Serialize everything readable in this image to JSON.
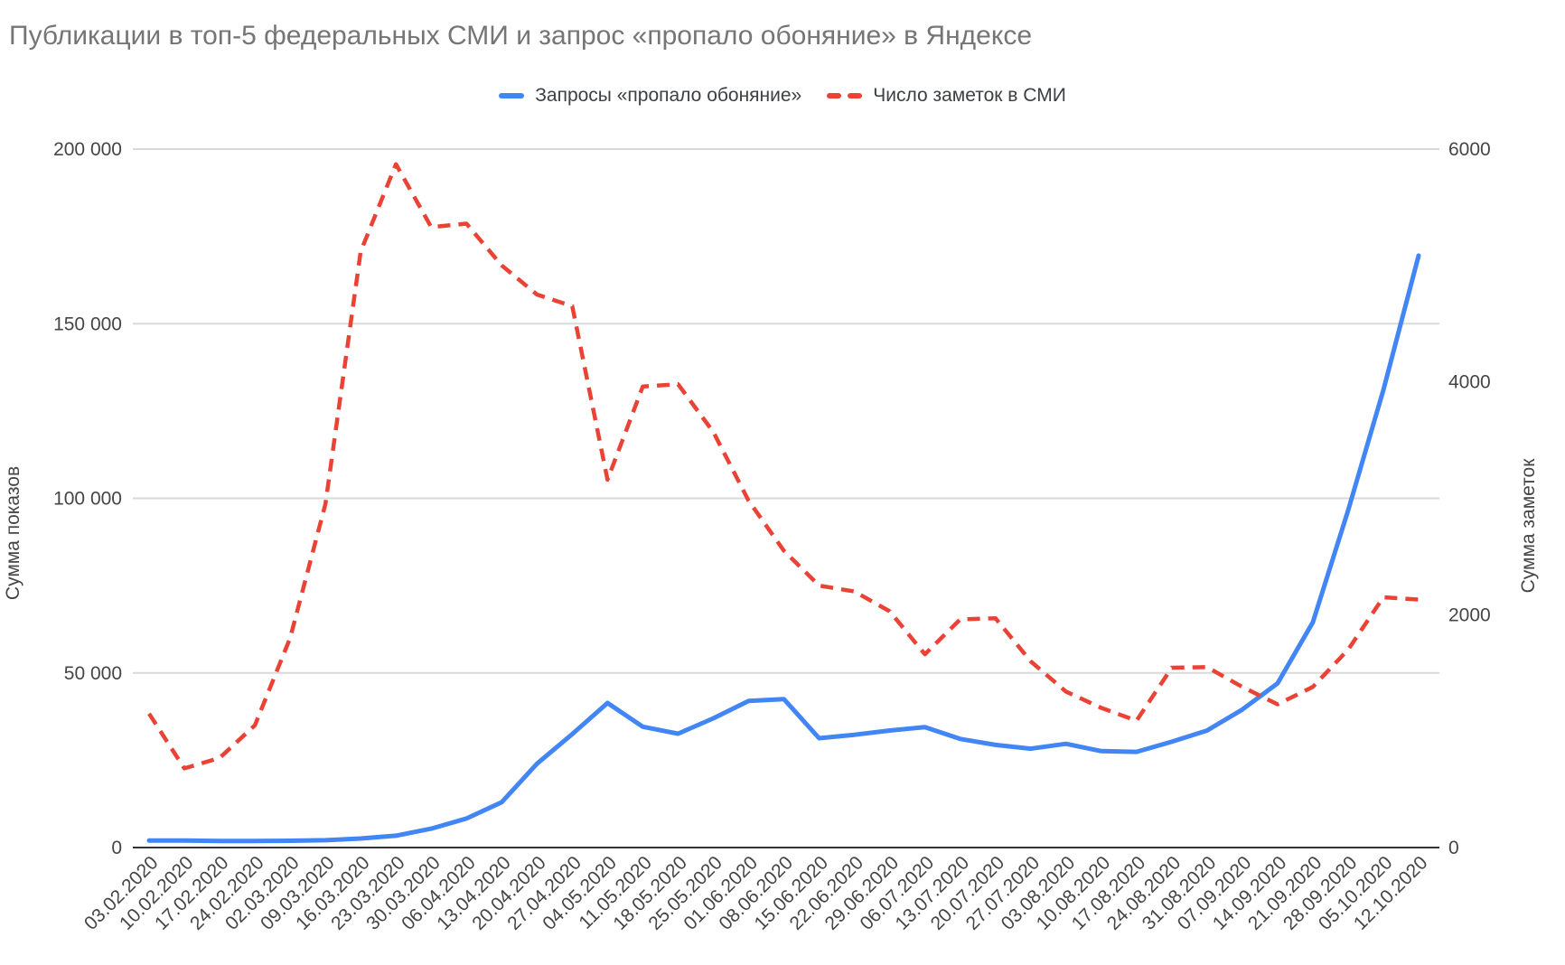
{
  "chart_data": {
    "type": "line",
    "title": "Публикации в топ-5 федеральных СМИ и запрос «пропало обоняние» в Яндексе",
    "categories": [
      "03.02.2020",
      "10.02.2020",
      "17.02.2020",
      "24.02.2020",
      "02.03.2020",
      "09.03.2020",
      "16.03.2020",
      "23.03.2020",
      "30.03.2020",
      "06.04.2020",
      "13.04.2020",
      "20.04.2020",
      "27.04.2020",
      "04.05.2020",
      "11.05.2020",
      "18.05.2020",
      "25.05.2020",
      "01.06.2020",
      "08.06.2020",
      "15.06.2020",
      "22.06.2020",
      "29.06.2020",
      "06.07.2020",
      "13.07.2020",
      "20.07.2020",
      "27.07.2020",
      "03.08.2020",
      "10.08.2020",
      "17.08.2020",
      "24.08.2020",
      "31.08.2020",
      "07.09.2020",
      "14.09.2020",
      "21.09.2020",
      "28.09.2020",
      "05.10.2020",
      "12.10.2020"
    ],
    "series": [
      {
        "name": "Запросы «пропало обоняние»",
        "axis": "left",
        "color": "#4285f4",
        "style": "solid",
        "values": [
          2000,
          2000,
          1900,
          1900,
          1950,
          2100,
          2600,
          3400,
          5400,
          8300,
          13000,
          24000,
          32500,
          41400,
          34600,
          32600,
          37000,
          42000,
          42500,
          31300,
          32300,
          33500,
          34500,
          31100,
          29400,
          28300,
          29700,
          27600,
          27400,
          30300,
          33500,
          39500,
          47000,
          64500,
          96500,
          131000,
          169500
        ]
      },
      {
        "name": "Число заметок в СМИ",
        "axis": "right",
        "color": "#ea4335",
        "style": "dashed",
        "values": [
          1150,
          680,
          770,
          1050,
          1800,
          2950,
          5120,
          5870,
          5330,
          5360,
          5000,
          4750,
          4650,
          3160,
          3960,
          3980,
          3570,
          2980,
          2550,
          2250,
          2200,
          2030,
          1660,
          1960,
          1970,
          1600,
          1340,
          1200,
          1090,
          1545,
          1550,
          1380,
          1230,
          1380,
          1700,
          2150,
          2130
        ]
      }
    ],
    "left_axis": {
      "title": "Сумма показов",
      "max": 200000,
      "ticks": [
        {
          "value": 0,
          "label": "0"
        },
        {
          "value": 50000,
          "label": "50 000"
        },
        {
          "value": 100000,
          "label": "100 000"
        },
        {
          "value": 150000,
          "label": "150 000"
        },
        {
          "value": 200000,
          "label": "200 000"
        }
      ]
    },
    "right_axis": {
      "title": "Сумма заметок",
      "max": 6000,
      "ticks": [
        {
          "value": 0,
          "label": "0"
        },
        {
          "value": 2000,
          "label": "2000"
        },
        {
          "value": 4000,
          "label": "4000"
        },
        {
          "value": 6000,
          "label": "6000"
        }
      ]
    },
    "grid": true,
    "legend_position": "top"
  }
}
